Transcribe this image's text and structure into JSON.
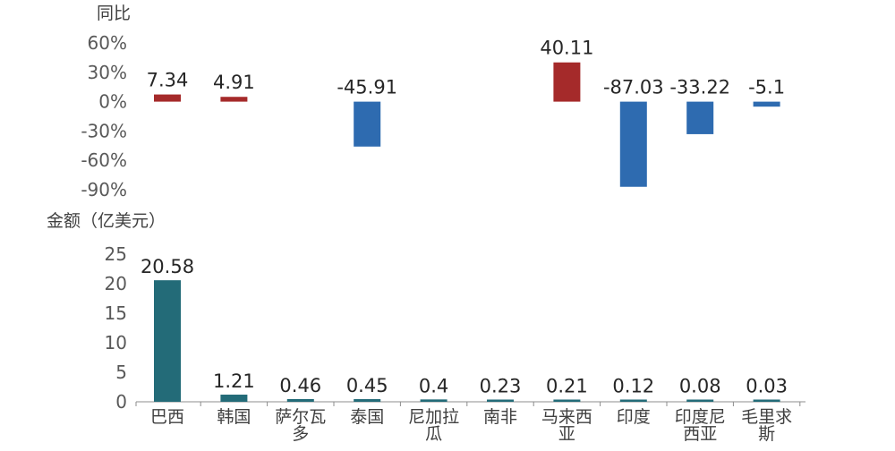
{
  "chart_data": [
    {
      "type": "bar",
      "title": "同比",
      "categories": [
        "巴西",
        "韩国",
        "萨尔瓦多",
        "泰国",
        "尼加拉瓜",
        "南非",
        "马来西亚",
        "印度",
        "印度尼西亚",
        "毛里求斯"
      ],
      "values": [
        7.34,
        4.91,
        null,
        -45.91,
        null,
        null,
        40.11,
        -87.03,
        -33.22,
        -5.1
      ],
      "data_labels": [
        "7.34",
        "4.91",
        "",
        "-45.91",
        "",
        "",
        "40.11",
        "-87.03",
        "-33.22",
        "-5.1"
      ],
      "ylim": [
        -90,
        60
      ],
      "yticks": [
        60,
        30,
        0,
        -30,
        -60,
        -90
      ],
      "ytick_labels": [
        "60%",
        "30%",
        "0%",
        "-30%",
        "-60%",
        "-90%"
      ],
      "colors": {
        "positive": "#a52a2a",
        "negative": "#2e6bb0"
      },
      "grid": false
    },
    {
      "type": "bar",
      "title": "金额（亿美元）",
      "categories": [
        "巴西",
        "韩国",
        "萨尔瓦多",
        "泰国",
        "尼加拉瓜",
        "南非",
        "马来西亚",
        "印度",
        "印度尼西亚",
        "毛里求斯"
      ],
      "category_labels": [
        [
          "巴西"
        ],
        [
          "韩国"
        ],
        [
          "萨尔瓦",
          "多"
        ],
        [
          "泰国"
        ],
        [
          "尼加拉",
          "瓜"
        ],
        [
          "南非"
        ],
        [
          "马来西",
          "亚"
        ],
        [
          "印度"
        ],
        [
          "印度尼",
          "西亚"
        ],
        [
          "毛里求",
          "斯"
        ]
      ],
      "values": [
        20.58,
        1.21,
        0.46,
        0.45,
        0.4,
        0.23,
        0.21,
        0.12,
        0.08,
        0.03
      ],
      "data_labels": [
        "20.58",
        "1.21",
        "0.46",
        "0.45",
        "0.4",
        "0.23",
        "0.21",
        "0.12",
        "0.08",
        "0.03"
      ],
      "ylim": [
        0,
        25
      ],
      "yticks": [
        25,
        20,
        15,
        10,
        5,
        0
      ],
      "ytick_labels": [
        "25",
        "20",
        "15",
        "10",
        "5",
        "0"
      ],
      "colors": {
        "bar": "#236b78"
      },
      "grid": false
    }
  ]
}
